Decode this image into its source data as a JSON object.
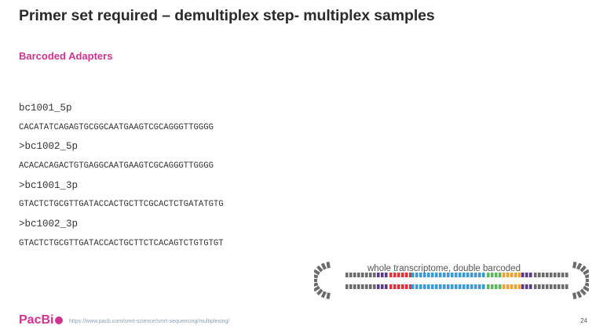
{
  "slide": {
    "title": "Primer set required – demultiplex step- multiplex samples",
    "subtitle": "Barcoded Adapters",
    "sequences": [
      {
        "text": "bc1001_5p",
        "kind": "hdr"
      },
      {
        "text": "CACATATCAGAGTGCGGCAATGAAGTCGCAGGGTTGGGG",
        "kind": "seq"
      },
      {
        "text": ">bc1002_5p",
        "kind": "hdr"
      },
      {
        "text": "ACACACAGACTGTGAGGCAATGAAGTCGCAGGGTTGGGG",
        "kind": "seq"
      },
      {
        "text": ">bc1001_3p",
        "kind": "hdr"
      },
      {
        "text": "GTACTCTGCGTTGATACCACTGCTTCGCACTCTGATATGTG",
        "kind": "seq"
      },
      {
        "text": ">bc1002_3p",
        "kind": "hdr"
      },
      {
        "text": "GTACTCTGCGTTGATACCACTGCTTCTCACAGTCTGTGTGT",
        "kind": "seq"
      }
    ],
    "figure_caption": "whole transcriptome, double barcoded",
    "footer": {
      "logo_text": "PacBi",
      "url": "https://www.pacb.com/smrt-science/smrt-sequencing/multiplexing/",
      "page_number": "24"
    }
  },
  "colors": {
    "accent_pink": "#d1338f",
    "barcode_purple": "#5b3a8e",
    "barcode_red": "#e0343c",
    "insert_blue": "#3d9ad6",
    "insert_green": "#5cb85c",
    "insert_orange": "#f0a030",
    "adapter_gray": "#6b6b6b"
  }
}
